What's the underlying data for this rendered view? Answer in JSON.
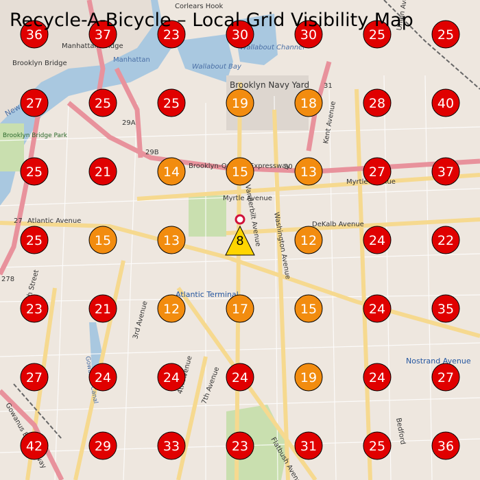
{
  "title": "Recycle-A-Bicycle – Local Grid Visibility Map",
  "colors": {
    "high": "#e00000",
    "mid": "#f28c0f",
    "site": "#ffd500",
    "water": "#a9c8e0",
    "land": "#eee7df",
    "park": "#c9dfaf",
    "arterial": "#f6d98f",
    "highway": "#e8929c"
  },
  "legend_thresholds": {
    "orange_max": 19
  },
  "grid": {
    "rows": [
      [
        36,
        37,
        23,
        30,
        30,
        25,
        25
      ],
      [
        27,
        25,
        25,
        19,
        18,
        28,
        40
      ],
      [
        25,
        21,
        14,
        15,
        13,
        27,
        37
      ],
      [
        25,
        15,
        13,
        8,
        12,
        24,
        22
      ],
      [
        23,
        21,
        12,
        17,
        15,
        24,
        35
      ],
      [
        27,
        24,
        24,
        24,
        19,
        24,
        27
      ],
      [
        42,
        29,
        33,
        23,
        31,
        25,
        36
      ]
    ],
    "site_marker": {
      "row": 3,
      "col": 3,
      "value": 8,
      "symbol": "triangle"
    }
  },
  "map_labels": {
    "corlears_hook": "Corlears Hook",
    "brooklyn_bridge": "Brooklyn Bridge",
    "manhattan_bridge": "Manhattan Bridge",
    "manhattan": "Manhattan",
    "wallabout_bay": "Wallabout Bay",
    "wallabout_channel": "Wallabout Channel",
    "brooklyn_navy_yard": "Brooklyn Navy Yard",
    "bqe": "Brooklyn-Queens Expressway",
    "myrtle": "Myrtle Avenue",
    "atlantic": "Atlantic Avenue",
    "dekalb": "DeKalb Avenue",
    "vanderbilt": "Vanderbilt Avenue",
    "washington": "Washington Avenue",
    "kent": "Kent Avenue",
    "smith": "Smith Street",
    "third_ave": "3rd Avenue",
    "fourth_ave": "4th Avenue",
    "seventh_ave": "7th Avenue",
    "flatbush": "Flatbush Avenue",
    "atlantic_terminal": "Atlantic Terminal",
    "nostrand": "Nostrand Avenue",
    "union": "Union Avenue",
    "bedford": "Bedford",
    "gowanus": "Gowanus Expressway",
    "new_york": "New York",
    "brooklyn_park": "Brooklyn Bridge Park",
    "gowanus_canal": "Gowanus Canal",
    "rt_29a": "29A",
    "rt_29b": "29B",
    "rt_30": "30",
    "rt_31": "31",
    "rt_27": "27",
    "rt_278": "278"
  }
}
